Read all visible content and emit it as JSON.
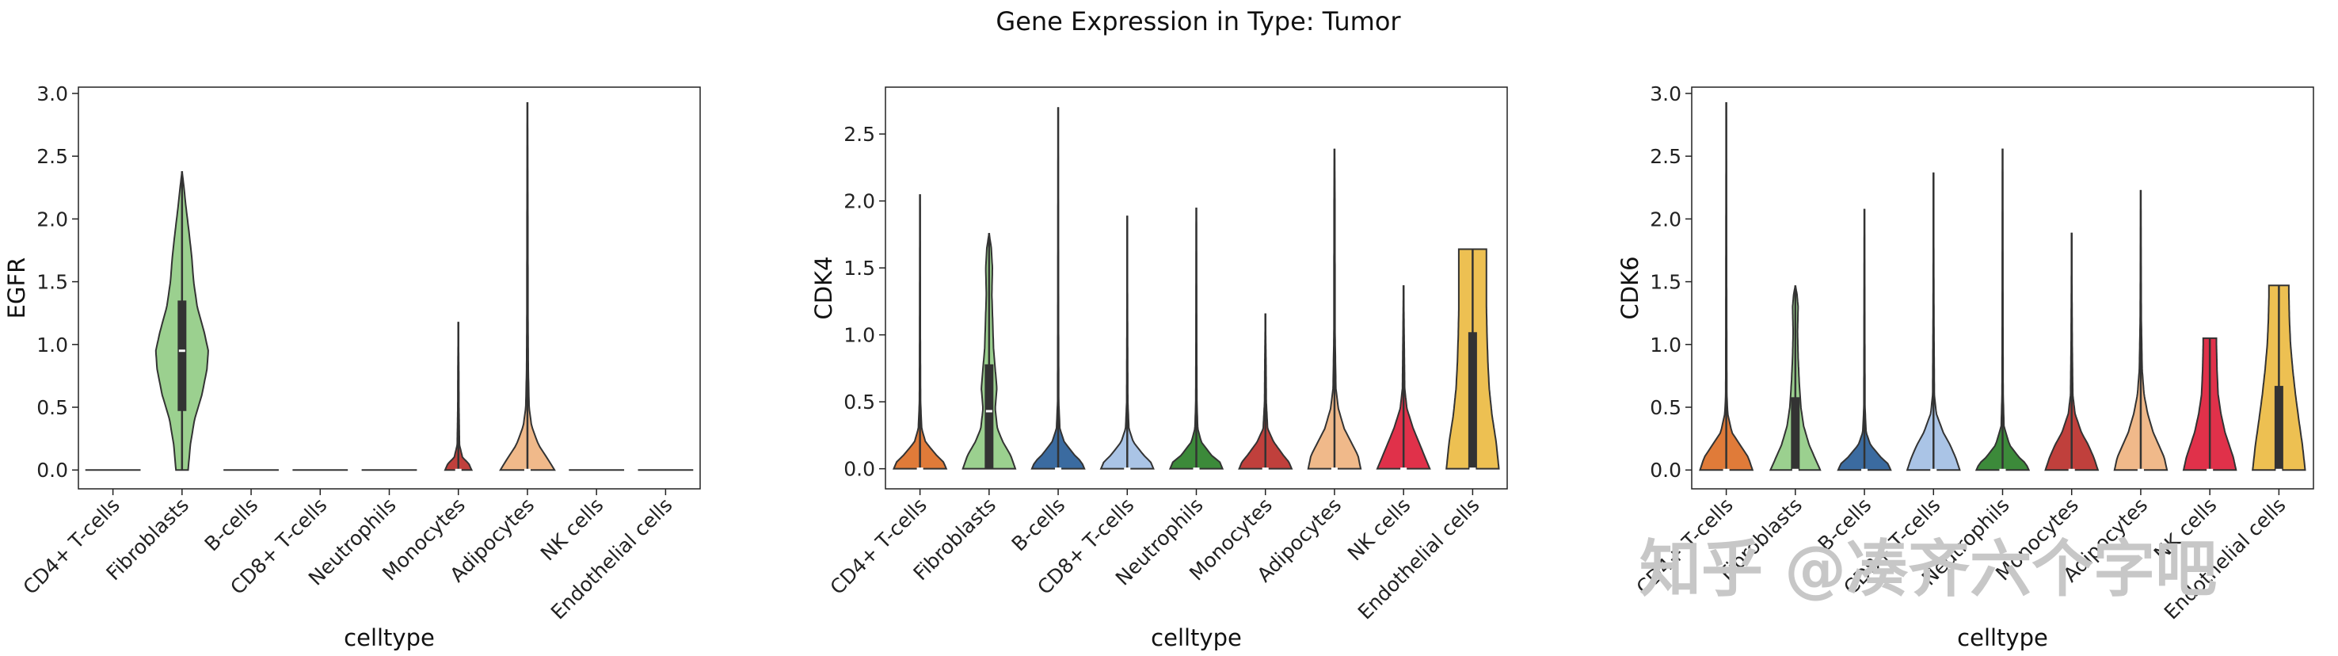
{
  "title": "Gene Expression in Type: Tumor",
  "watermark": "知乎 @凑齐六个字吧",
  "chart_data": [
    {
      "type": "violin",
      "xlabel": "celltype",
      "ylabel": "EGFR",
      "ylim": [
        -0.15,
        3.05
      ],
      "yticks": [
        "0.0",
        "0.5",
        "1.0",
        "1.5",
        "2.0",
        "2.5",
        "3.0"
      ],
      "grid": false,
      "categories": [
        "CD4+ T-cells",
        "Fibroblasts",
        "B-cells",
        "CD8+ T-cells",
        "Neutrophils",
        "Monocytes",
        "Adipocytes",
        "NK cells",
        "Endothelial cells"
      ],
      "colors": [
        "#e07b39",
        "#9bd08f",
        "#3b6ba0",
        "#aac4e6",
        "#3c8a3a",
        "#c0403c",
        "#f0b98a",
        "#e0314a",
        "#edc052"
      ],
      "violins": [
        {
          "ymin": 0,
          "ymax": 0,
          "q1": 0,
          "median": 0,
          "q3": 0,
          "profile": [
            [
              0,
              0.5
            ]
          ]
        },
        {
          "ymin": 0,
          "ymax": 2.38,
          "q1": 0.47,
          "median": 0.95,
          "q3": 1.35,
          "profile": [
            [
              0,
              0.22
            ],
            [
              0.2,
              0.3
            ],
            [
              0.4,
              0.45
            ],
            [
              0.6,
              0.72
            ],
            [
              0.8,
              0.9
            ],
            [
              0.95,
              0.95
            ],
            [
              1.1,
              0.8
            ],
            [
              1.3,
              0.55
            ],
            [
              1.5,
              0.42
            ],
            [
              1.7,
              0.35
            ],
            [
              1.9,
              0.25
            ],
            [
              2.1,
              0.14
            ],
            [
              2.25,
              0.07
            ],
            [
              2.38,
              0
            ]
          ]
        },
        {
          "ymin": 0,
          "ymax": 0,
          "q1": 0,
          "median": 0,
          "q3": 0,
          "profile": [
            [
              0,
              0.5
            ]
          ]
        },
        {
          "ymin": 0,
          "ymax": 0,
          "q1": 0,
          "median": 0,
          "q3": 0,
          "profile": [
            [
              0,
              0.5
            ]
          ]
        },
        {
          "ymin": 0,
          "ymax": 0,
          "q1": 0,
          "median": 0,
          "q3": 0,
          "profile": [
            [
              0,
              0.5
            ]
          ]
        },
        {
          "ymin": 0,
          "ymax": 1.18,
          "q1": 0,
          "median": 0,
          "q3": 0,
          "profile": [
            [
              0,
              0.48
            ],
            [
              0.05,
              0.38
            ],
            [
              0.1,
              0.15
            ],
            [
              0.2,
              0.04
            ],
            [
              0.5,
              0.02
            ],
            [
              0.8,
              0.015
            ],
            [
              1.18,
              0
            ]
          ]
        },
        {
          "ymin": 0,
          "ymax": 2.93,
          "q1": 0,
          "median": 0,
          "q3": 0,
          "profile": [
            [
              0,
              0.98
            ],
            [
              0.1,
              0.7
            ],
            [
              0.2,
              0.4
            ],
            [
              0.35,
              0.15
            ],
            [
              0.5,
              0.06
            ],
            [
              0.8,
              0.03
            ],
            [
              1.2,
              0.02
            ],
            [
              2,
              0.015
            ],
            [
              2.93,
              0
            ]
          ]
        },
        {
          "ymin": 0,
          "ymax": 0,
          "q1": 0,
          "median": 0,
          "q3": 0,
          "profile": [
            [
              0,
              0.5
            ]
          ]
        },
        {
          "ymin": 0,
          "ymax": 0,
          "q1": 0,
          "median": 0,
          "q3": 0,
          "profile": [
            [
              0,
              0.5
            ]
          ]
        }
      ]
    },
    {
      "type": "violin",
      "xlabel": "celltype",
      "ylabel": "CDK4",
      "ylim": [
        -0.15,
        2.85
      ],
      "yticks": [
        "0.0",
        "0.5",
        "1.0",
        "1.5",
        "2.0",
        "2.5"
      ],
      "grid": false,
      "categories": [
        "CD4+ T-cells",
        "Fibroblasts",
        "B-cells",
        "CD8+ T-cells",
        "Neutrophils",
        "Monocytes",
        "Adipocytes",
        "NK cells",
        "Endothelial cells"
      ],
      "colors": [
        "#e07b39",
        "#9bd08f",
        "#3b6ba0",
        "#aac4e6",
        "#3c8a3a",
        "#c0403c",
        "#f0b98a",
        "#e0314a",
        "#edc052"
      ],
      "violins": [
        {
          "ymin": 0,
          "ymax": 2.05,
          "q1": 0,
          "median": 0,
          "q3": 0,
          "profile": [
            [
              0,
              0.95
            ],
            [
              0.05,
              0.85
            ],
            [
              0.1,
              0.6
            ],
            [
              0.2,
              0.2
            ],
            [
              0.3,
              0.06
            ],
            [
              0.5,
              0.02
            ],
            [
              1,
              0.012
            ],
            [
              2.05,
              0
            ]
          ]
        },
        {
          "ymin": 0,
          "ymax": 1.76,
          "q1": 0,
          "median": 0.43,
          "q3": 0.78,
          "profile": [
            [
              0,
              0.95
            ],
            [
              0.1,
              0.78
            ],
            [
              0.2,
              0.5
            ],
            [
              0.3,
              0.3
            ],
            [
              0.45,
              0.22
            ],
            [
              0.6,
              0.28
            ],
            [
              0.75,
              0.22
            ],
            [
              0.9,
              0.16
            ],
            [
              1.1,
              0.13
            ],
            [
              1.3,
              0.1
            ],
            [
              1.5,
              0.12
            ],
            [
              1.65,
              0.08
            ],
            [
              1.76,
              0
            ]
          ]
        },
        {
          "ymin": 0,
          "ymax": 2.7,
          "q1": 0,
          "median": 0,
          "q3": 0,
          "profile": [
            [
              0,
              0.95
            ],
            [
              0.05,
              0.85
            ],
            [
              0.1,
              0.6
            ],
            [
              0.2,
              0.22
            ],
            [
              0.3,
              0.06
            ],
            [
              0.5,
              0.02
            ],
            [
              1.2,
              0.012
            ],
            [
              2.7,
              0
            ]
          ]
        },
        {
          "ymin": 0,
          "ymax": 1.89,
          "q1": 0,
          "median": 0,
          "q3": 0,
          "profile": [
            [
              0,
              0.95
            ],
            [
              0.05,
              0.85
            ],
            [
              0.1,
              0.6
            ],
            [
              0.2,
              0.22
            ],
            [
              0.3,
              0.06
            ],
            [
              0.5,
              0.02
            ],
            [
              1,
              0.012
            ],
            [
              1.89,
              0
            ]
          ]
        },
        {
          "ymin": 0,
          "ymax": 1.95,
          "q1": 0,
          "median": 0,
          "q3": 0,
          "profile": [
            [
              0,
              0.95
            ],
            [
              0.05,
              0.85
            ],
            [
              0.1,
              0.55
            ],
            [
              0.2,
              0.18
            ],
            [
              0.3,
              0.05
            ],
            [
              0.5,
              0.02
            ],
            [
              1,
              0.012
            ],
            [
              1.95,
              0
            ]
          ]
        },
        {
          "ymin": 0,
          "ymax": 1.16,
          "q1": 0,
          "median": 0,
          "q3": 0,
          "profile": [
            [
              0,
              0.95
            ],
            [
              0.05,
              0.85
            ],
            [
              0.1,
              0.65
            ],
            [
              0.2,
              0.3
            ],
            [
              0.3,
              0.08
            ],
            [
              0.5,
              0.03
            ],
            [
              0.8,
              0.02
            ],
            [
              1.16,
              0
            ]
          ]
        },
        {
          "ymin": 0,
          "ymax": 2.39,
          "q1": 0,
          "median": 0,
          "q3": 0,
          "profile": [
            [
              0,
              0.95
            ],
            [
              0.1,
              0.85
            ],
            [
              0.2,
              0.6
            ],
            [
              0.3,
              0.35
            ],
            [
              0.45,
              0.14
            ],
            [
              0.6,
              0.05
            ],
            [
              1,
              0.02
            ],
            [
              2,
              0.015
            ],
            [
              2.39,
              0
            ]
          ]
        },
        {
          "ymin": 0,
          "ymax": 1.37,
          "q1": 0,
          "median": 0,
          "q3": 0,
          "profile": [
            [
              0,
              0.95
            ],
            [
              0.1,
              0.75
            ],
            [
              0.2,
              0.55
            ],
            [
              0.3,
              0.35
            ],
            [
              0.45,
              0.12
            ],
            [
              0.6,
              0.04
            ],
            [
              1,
              0.02
            ],
            [
              1.37,
              0
            ]
          ]
        },
        {
          "ymin": 0,
          "ymax": 1.64,
          "q1": 0,
          "median": 0,
          "q3": 1.02,
          "profile": [
            [
              0,
              0.95
            ],
            [
              0.2,
              0.85
            ],
            [
              0.4,
              0.7
            ],
            [
              0.6,
              0.6
            ],
            [
              0.8,
              0.55
            ],
            [
              1,
              0.52
            ],
            [
              1.2,
              0.5
            ],
            [
              1.4,
              0.5
            ],
            [
              1.64,
              0.5
            ]
          ]
        }
      ]
    },
    {
      "type": "violin",
      "xlabel": "celltype",
      "ylabel": "CDK6",
      "ylim": [
        -0.15,
        3.05
      ],
      "yticks": [
        "0.0",
        "0.5",
        "1.0",
        "1.5",
        "2.0",
        "2.5",
        "3.0"
      ],
      "grid": false,
      "categories": [
        "CD4+ T-cells",
        "Fibroblasts",
        "B-cells",
        "CD8+ T-cells",
        "Neutrophils",
        "Monocytes",
        "Adipocytes",
        "NK cells",
        "Endothelial cells"
      ],
      "colors": [
        "#e07b39",
        "#9bd08f",
        "#3b6ba0",
        "#aac4e6",
        "#3c8a3a",
        "#c0403c",
        "#f0b98a",
        "#e0314a",
        "#edc052"
      ],
      "violins": [
        {
          "ymin": 0,
          "ymax": 2.93,
          "q1": 0,
          "median": 0,
          "q3": 0,
          "profile": [
            [
              0,
              0.95
            ],
            [
              0.1,
              0.8
            ],
            [
              0.2,
              0.5
            ],
            [
              0.3,
              0.2
            ],
            [
              0.45,
              0.05
            ],
            [
              0.6,
              0.02
            ],
            [
              1.5,
              0.012
            ],
            [
              2.93,
              0
            ]
          ]
        },
        {
          "ymin": 0,
          "ymax": 1.47,
          "q1": 0,
          "median": 0,
          "q3": 0.58,
          "profile": [
            [
              0,
              0.9
            ],
            [
              0.1,
              0.7
            ],
            [
              0.2,
              0.5
            ],
            [
              0.35,
              0.3
            ],
            [
              0.5,
              0.2
            ],
            [
              0.7,
              0.14
            ],
            [
              0.9,
              0.1
            ],
            [
              1.1,
              0.08
            ],
            [
              1.3,
              0.1
            ],
            [
              1.4,
              0.06
            ],
            [
              1.47,
              0
            ]
          ]
        },
        {
          "ymin": 0,
          "ymax": 2.08,
          "q1": 0,
          "median": 0,
          "q3": 0,
          "profile": [
            [
              0,
              0.95
            ],
            [
              0.05,
              0.85
            ],
            [
              0.1,
              0.6
            ],
            [
              0.2,
              0.22
            ],
            [
              0.3,
              0.06
            ],
            [
              0.5,
              0.02
            ],
            [
              1.2,
              0.012
            ],
            [
              2.08,
              0
            ]
          ]
        },
        {
          "ymin": 0,
          "ymax": 2.37,
          "q1": 0,
          "median": 0,
          "q3": 0,
          "profile": [
            [
              0,
              0.95
            ],
            [
              0.1,
              0.8
            ],
            [
              0.2,
              0.6
            ],
            [
              0.3,
              0.35
            ],
            [
              0.45,
              0.1
            ],
            [
              0.6,
              0.03
            ],
            [
              1.2,
              0.015
            ],
            [
              2.37,
              0
            ]
          ]
        },
        {
          "ymin": 0,
          "ymax": 2.56,
          "q1": 0,
          "median": 0,
          "q3": 0,
          "profile": [
            [
              0,
              0.95
            ],
            [
              0.05,
              0.85
            ],
            [
              0.1,
              0.6
            ],
            [
              0.2,
              0.25
            ],
            [
              0.35,
              0.05
            ],
            [
              0.6,
              0.02
            ],
            [
              1.2,
              0.012
            ],
            [
              2.56,
              0
            ]
          ]
        },
        {
          "ymin": 0,
          "ymax": 1.89,
          "q1": 0,
          "median": 0,
          "q3": 0,
          "profile": [
            [
              0,
              0.95
            ],
            [
              0.1,
              0.8
            ],
            [
              0.2,
              0.6
            ],
            [
              0.3,
              0.35
            ],
            [
              0.45,
              0.12
            ],
            [
              0.6,
              0.04
            ],
            [
              1,
              0.02
            ],
            [
              1.89,
              0
            ]
          ]
        },
        {
          "ymin": 0,
          "ymax": 2.23,
          "q1": 0,
          "median": 0,
          "q3": 0,
          "profile": [
            [
              0,
              0.95
            ],
            [
              0.1,
              0.85
            ],
            [
              0.2,
              0.65
            ],
            [
              0.3,
              0.45
            ],
            [
              0.45,
              0.25
            ],
            [
              0.6,
              0.12
            ],
            [
              0.8,
              0.05
            ],
            [
              1.2,
              0.02
            ],
            [
              2.23,
              0
            ]
          ]
        },
        {
          "ymin": 0,
          "ymax": 1.05,
          "q1": 0,
          "median": 0,
          "q3": 0,
          "profile": [
            [
              0,
              0.95
            ],
            [
              0.1,
              0.85
            ],
            [
              0.2,
              0.7
            ],
            [
              0.3,
              0.55
            ],
            [
              0.45,
              0.4
            ],
            [
              0.6,
              0.3
            ],
            [
              0.8,
              0.26
            ],
            [
              1,
              0.24
            ],
            [
              1.05,
              0.24
            ]
          ]
        },
        {
          "ymin": 0,
          "ymax": 1.47,
          "q1": 0,
          "median": 0,
          "q3": 0.67,
          "profile": [
            [
              0,
              0.95
            ],
            [
              0.2,
              0.85
            ],
            [
              0.4,
              0.72
            ],
            [
              0.6,
              0.6
            ],
            [
              0.8,
              0.5
            ],
            [
              1,
              0.42
            ],
            [
              1.2,
              0.38
            ],
            [
              1.4,
              0.36
            ],
            [
              1.47,
              0.36
            ]
          ]
        }
      ]
    }
  ]
}
